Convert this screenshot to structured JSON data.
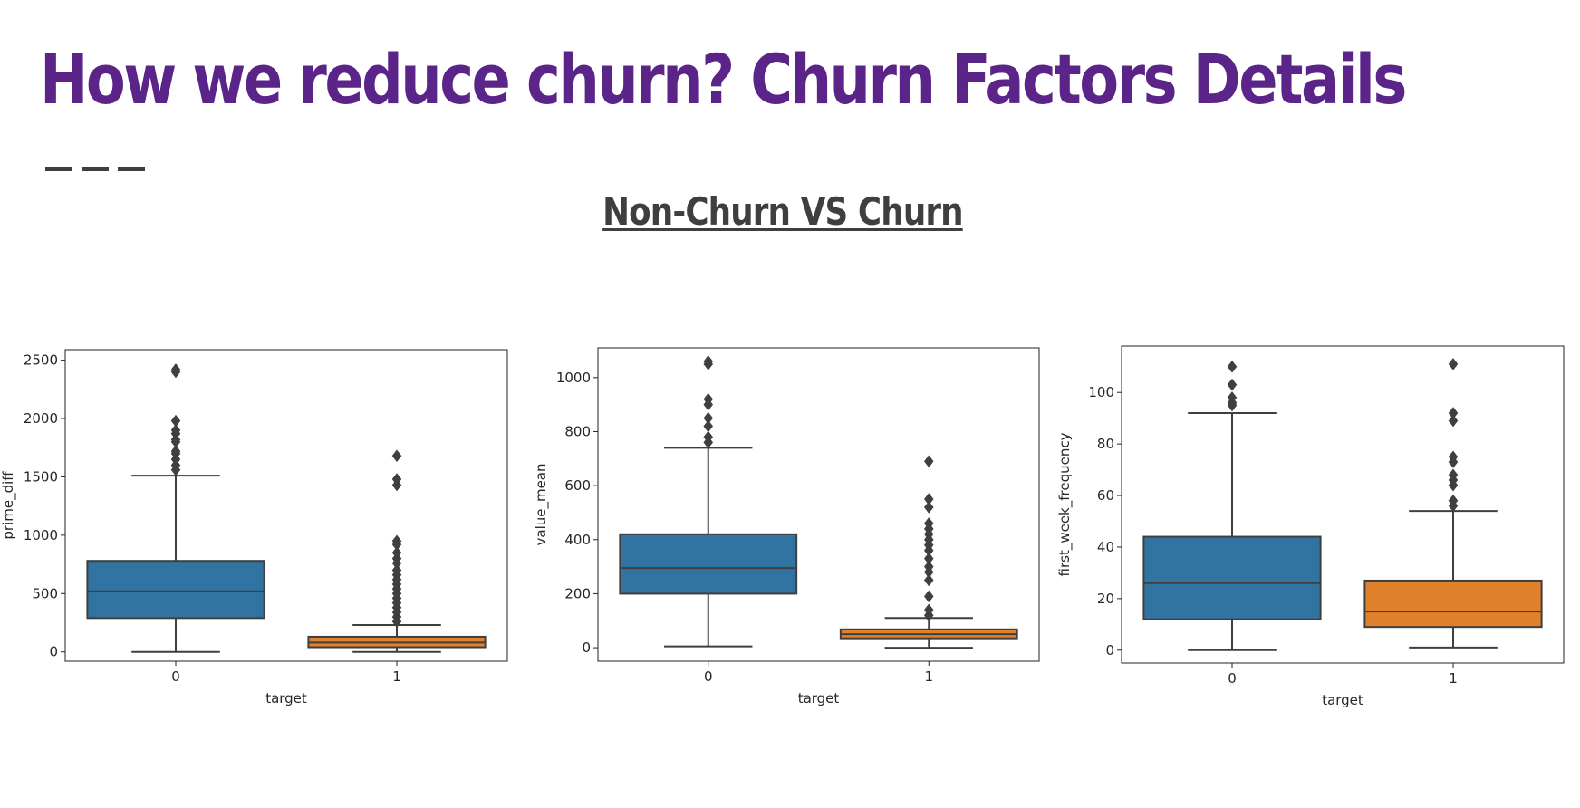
{
  "slide": {
    "title": "How we reduce churn? Churn Factors Details",
    "subtitle": "Non-Churn VS Churn"
  },
  "colors": {
    "title": "#5b2488",
    "subtitle": "#3f3f3f",
    "box_non_churn": "#3274a1",
    "box_churn": "#e1812c",
    "whisker": "#3f3f3f"
  },
  "chart_data": [
    {
      "type": "box",
      "xlabel": "target",
      "ylabel": "prime_diff",
      "categories": [
        "0",
        "1"
      ],
      "ylim": [
        -80,
        2590
      ],
      "yticks": [
        0,
        500,
        1000,
        1500,
        2000,
        2500
      ],
      "boxes": [
        {
          "category": "0",
          "whisker_low": 0,
          "q1": 290,
          "median": 520,
          "q3": 780,
          "whisker_high": 1510,
          "outliers": [
            1560,
            1600,
            1650,
            1700,
            1720,
            1800,
            1820,
            1870,
            1900,
            1980,
            2400,
            2420
          ]
        },
        {
          "category": "1",
          "whisker_low": 0,
          "q1": 40,
          "median": 80,
          "q3": 130,
          "whisker_high": 230,
          "outliers": [
            260,
            300,
            340,
            380,
            420,
            460,
            500,
            540,
            580,
            620,
            660,
            700,
            760,
            800,
            850,
            920,
            950,
            1430,
            1480,
            1680
          ]
        }
      ],
      "grid": false
    },
    {
      "type": "box",
      "xlabel": "target",
      "ylabel": "value_mean",
      "categories": [
        "0",
        "1"
      ],
      "ylim": [
        -50,
        1110
      ],
      "yticks": [
        0,
        200,
        400,
        600,
        800,
        1000
      ],
      "boxes": [
        {
          "category": "0",
          "whisker_low": 5,
          "q1": 200,
          "median": 295,
          "q3": 420,
          "whisker_high": 740,
          "outliers": [
            760,
            780,
            820,
            850,
            900,
            920,
            1050,
            1060
          ]
        },
        {
          "category": "1",
          "whisker_low": 0,
          "q1": 35,
          "median": 50,
          "q3": 68,
          "whisker_high": 110,
          "outliers": [
            120,
            140,
            190,
            250,
            280,
            300,
            330,
            360,
            380,
            400,
            420,
            440,
            460,
            520,
            550,
            690
          ]
        }
      ],
      "grid": false
    },
    {
      "type": "box",
      "xlabel": "target",
      "ylabel": "first_week_frequency",
      "categories": [
        "0",
        "1"
      ],
      "ylim": [
        -5,
        118
      ],
      "yticks": [
        0,
        20,
        40,
        60,
        80,
        100
      ],
      "boxes": [
        {
          "category": "0",
          "whisker_low": 0,
          "q1": 12,
          "median": 26,
          "q3": 44,
          "whisker_high": 92,
          "outliers": [
            95,
            96,
            98,
            103,
            110
          ]
        },
        {
          "category": "1",
          "whisker_low": 1,
          "q1": 9,
          "median": 15,
          "q3": 27,
          "whisker_high": 54,
          "outliers": [
            56,
            58,
            64,
            66,
            68,
            73,
            75,
            89,
            92,
            111
          ]
        }
      ],
      "grid": false
    }
  ]
}
